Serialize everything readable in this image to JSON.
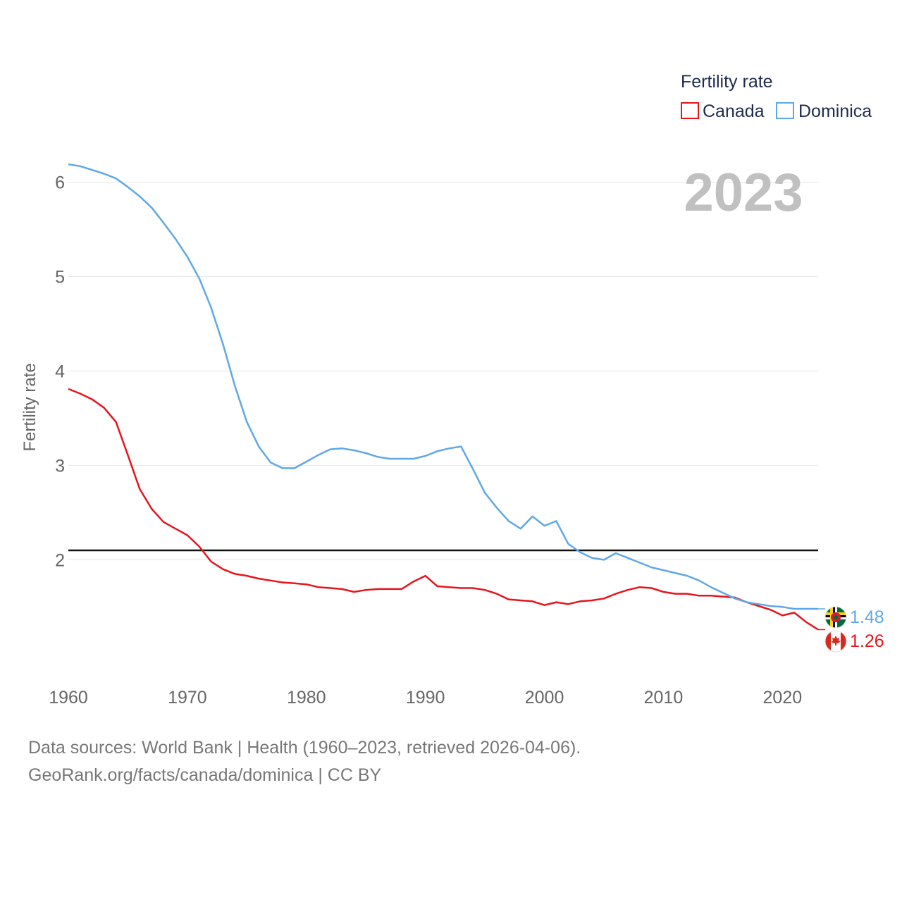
{
  "chart_data": {
    "type": "line",
    "title": "Fertility rate",
    "ylabel": "Fertility rate",
    "xlabel": "",
    "year_label": "2023",
    "xlim": [
      1960,
      2023
    ],
    "ylim": [
      0.95,
      6.4
    ],
    "x_ticks": [
      1960,
      1970,
      1980,
      1990,
      2000,
      2010,
      2020
    ],
    "y_ticks": [
      2,
      3,
      4,
      5,
      6
    ],
    "grid": true,
    "legend_title": "Fertility rate",
    "legend_position": "top-right",
    "reference_line": {
      "value": 2.1
    },
    "x": [
      1960,
      1961,
      1962,
      1963,
      1964,
      1965,
      1966,
      1967,
      1968,
      1969,
      1970,
      1971,
      1972,
      1973,
      1974,
      1975,
      1976,
      1977,
      1978,
      1979,
      1980,
      1981,
      1982,
      1983,
      1984,
      1985,
      1986,
      1987,
      1988,
      1989,
      1990,
      1991,
      1992,
      1993,
      1994,
      1995,
      1996,
      1997,
      1998,
      1999,
      2000,
      2001,
      2002,
      2003,
      2004,
      2005,
      2006,
      2007,
      2008,
      2009,
      2010,
      2011,
      2012,
      2013,
      2014,
      2015,
      2016,
      2017,
      2018,
      2019,
      2020,
      2021,
      2022,
      2023
    ],
    "series": [
      {
        "name": "Canada",
        "color": "#e8141c",
        "end_label": "1.26",
        "flag": "canada-flag",
        "values": [
          3.81,
          3.76,
          3.7,
          3.61,
          3.46,
          3.11,
          2.75,
          2.54,
          2.4,
          2.33,
          2.26,
          2.14,
          1.98,
          1.9,
          1.85,
          1.83,
          1.8,
          1.78,
          1.76,
          1.75,
          1.74,
          1.71,
          1.7,
          1.69,
          1.66,
          1.68,
          1.69,
          1.69,
          1.69,
          1.77,
          1.83,
          1.72,
          1.71,
          1.7,
          1.7,
          1.68,
          1.64,
          1.58,
          1.57,
          1.56,
          1.52,
          1.55,
          1.53,
          1.56,
          1.57,
          1.59,
          1.64,
          1.68,
          1.71,
          1.7,
          1.66,
          1.64,
          1.64,
          1.62,
          1.62,
          1.61,
          1.6,
          1.55,
          1.51,
          1.47,
          1.41,
          1.44,
          1.34,
          1.26
        ]
      },
      {
        "name": "Dominica",
        "color": "#5fa8e6",
        "end_label": "1.48",
        "flag": "dominica-flag",
        "values": [
          6.19,
          6.17,
          6.13,
          6.09,
          6.04,
          5.95,
          5.85,
          5.73,
          5.57,
          5.4,
          5.21,
          4.98,
          4.67,
          4.28,
          3.84,
          3.46,
          3.2,
          3.03,
          2.97,
          2.97,
          3.04,
          3.11,
          3.17,
          3.18,
          3.16,
          3.13,
          3.09,
          3.07,
          3.07,
          3.07,
          3.1,
          3.15,
          3.18,
          3.2,
          2.96,
          2.71,
          2.55,
          2.41,
          2.33,
          2.46,
          2.36,
          2.41,
          2.17,
          2.08,
          2.02,
          2.0,
          2.07,
          2.02,
          1.97,
          1.92,
          1.89,
          1.86,
          1.83,
          1.78,
          1.71,
          1.65,
          1.59,
          1.55,
          1.53,
          1.51,
          1.5,
          1.48,
          1.48,
          1.48
        ]
      }
    ]
  },
  "footer": {
    "sources": "Data sources: World Bank | Health (1960–2023, retrieved 2026-04-06).",
    "url": "GeoRank.org/facts/canada/dominica | CC BY"
  }
}
